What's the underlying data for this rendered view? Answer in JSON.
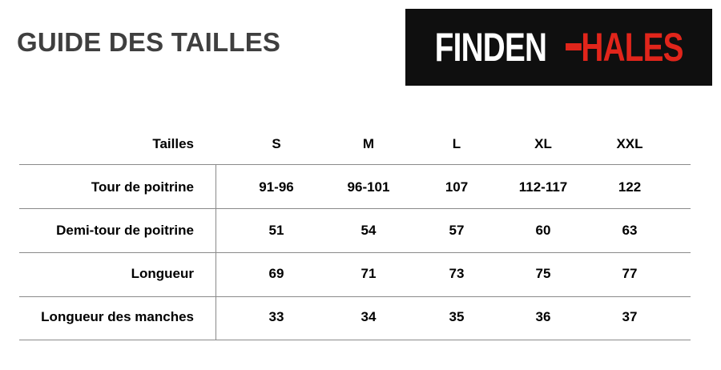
{
  "title": "GUIDE DES TAILLES",
  "logo": {
    "text_white": "FINDEN",
    "text_red": "HALES",
    "colors": {
      "background": "#0f0f0f",
      "white": "#ffffff",
      "red": "#e1251b"
    }
  },
  "table": {
    "header_label": "Tailles",
    "sizes": [
      "S",
      "M",
      "L",
      "XL",
      "XXL"
    ],
    "rows": [
      {
        "label": "Tour de poitrine",
        "values": [
          "91-96",
          "96-101",
          "107",
          "112-117",
          "122"
        ]
      },
      {
        "label": "Demi-tour de poitrine",
        "values": [
          "51",
          "54",
          "57",
          "60",
          "63"
        ]
      },
      {
        "label": "Longueur",
        "values": [
          "69",
          "71",
          "73",
          "75",
          "77"
        ]
      },
      {
        "label": "Longueur des manches",
        "values": [
          "33",
          "34",
          "35",
          "36",
          "37"
        ]
      }
    ]
  }
}
